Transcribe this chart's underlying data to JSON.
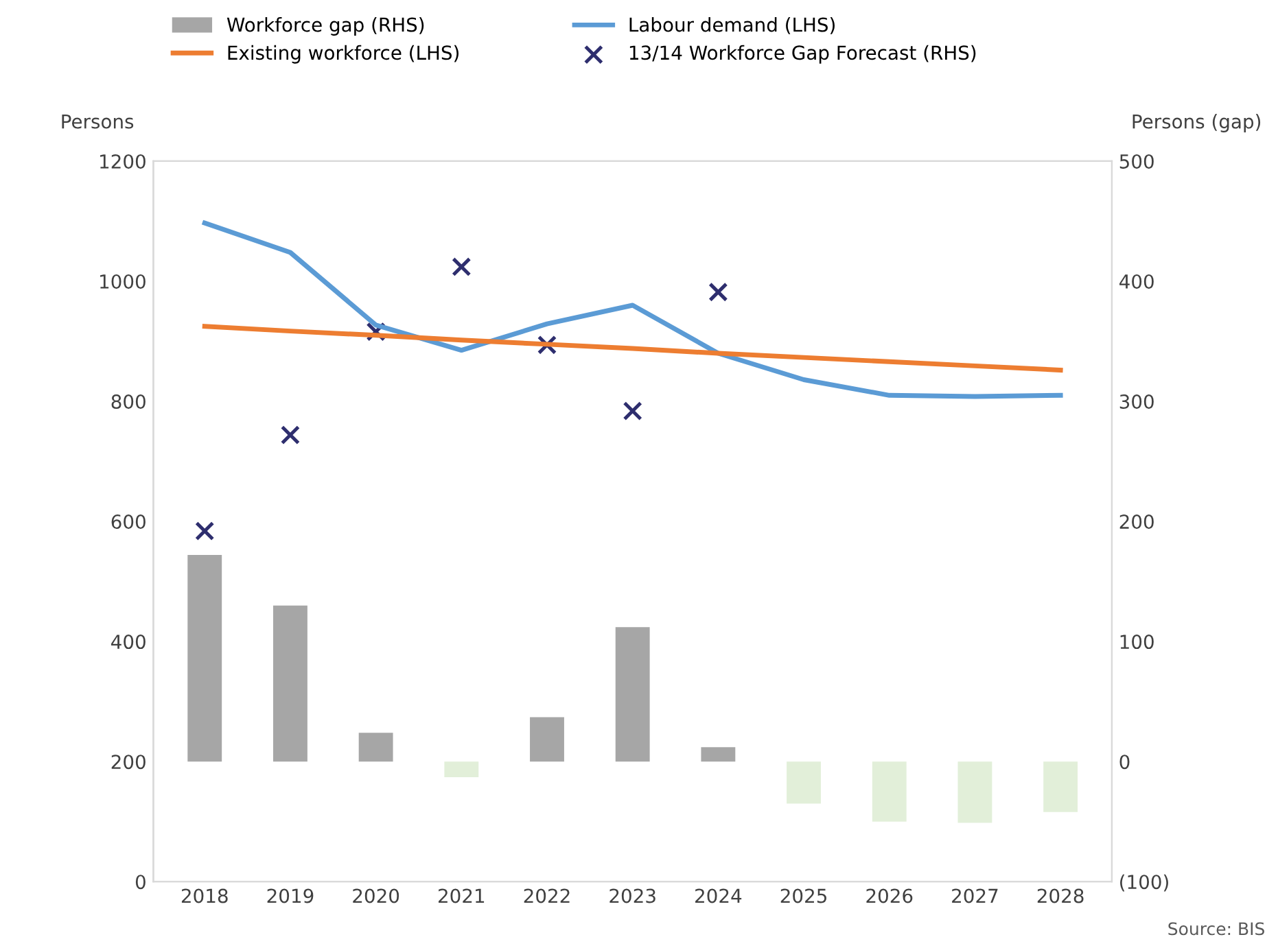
{
  "chart_data": {
    "type": "line",
    "categories": [
      "2018",
      "2019",
      "2020",
      "2021",
      "2022",
      "2023",
      "2024",
      "2025",
      "2026",
      "2027",
      "2028"
    ],
    "series": [
      {
        "name": "Workforce gap (RHS)",
        "type": "bar",
        "axis": "y2",
        "color": "#a6a6a6",
        "colors": [
          "#a6a6a6",
          "#a6a6a6",
          "#a6a6a6",
          "#e2efd9",
          "#a6a6a6",
          "#a6a6a6",
          "#a6a6a6",
          "#e2efd9",
          "#e2efd9",
          "#e2efd9",
          "#e2efd9"
        ],
        "values": [
          172,
          130,
          24,
          -13,
          37,
          112,
          12,
          -35,
          -50,
          -51,
          -42
        ]
      },
      {
        "name": "Labour demand (LHS)",
        "color": "#5b9bd5",
        "values": [
          1097,
          1048,
          927,
          885,
          929,
          960,
          880,
          836,
          810,
          808,
          810
        ]
      },
      {
        "name": "Existing workforce (LHS)",
        "color": "#ed7d31",
        "values": [
          925,
          917,
          910,
          902,
          895,
          888,
          880,
          873,
          866,
          859,
          852
        ]
      },
      {
        "name": "13/14 Workforce Gap Forecast (RHS)",
        "type": "scatter",
        "axis": "y2",
        "marker": "cross",
        "color": "#2e2e6e",
        "values": [
          192,
          272,
          358,
          412,
          347,
          292,
          391,
          null,
          null,
          null,
          null
        ]
      }
    ],
    "ylabel": "Persons",
    "y2label": "Persons (gap)",
    "ylim": [
      0,
      1200
    ],
    "yticks": [
      0,
      200,
      400,
      600,
      800,
      1000,
      1200
    ],
    "y2lim": [
      -100,
      500
    ],
    "y2ticks": [
      {
        "value": -100,
        "label": "(100)"
      },
      0,
      100,
      200,
      300,
      400,
      500
    ],
    "legend": "top",
    "grid": false,
    "annotations": [
      "Source: BIS"
    ]
  }
}
